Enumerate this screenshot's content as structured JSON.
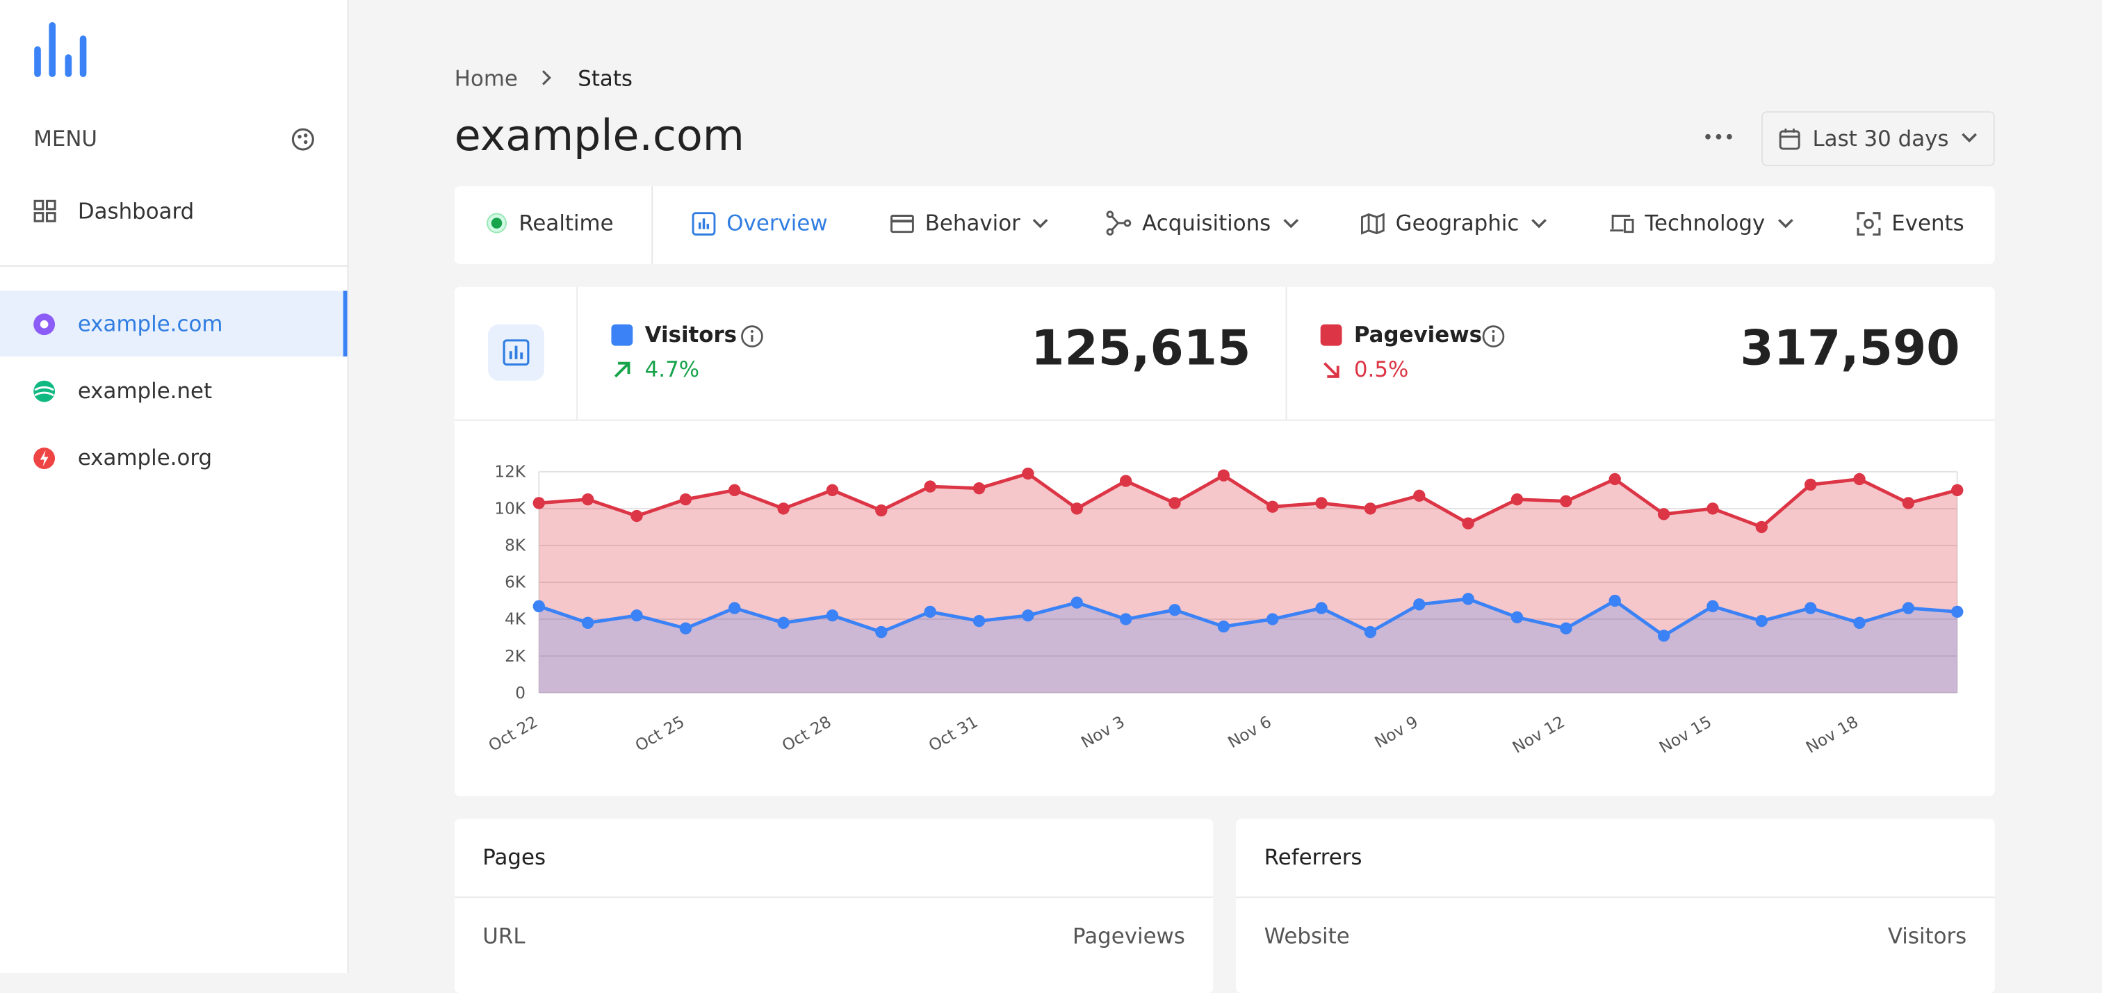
{
  "sidebar": {
    "menu_label": "MENU",
    "items": [
      "Dashboard"
    ],
    "sites": [
      "example.com",
      "example.net",
      "example.org"
    ]
  },
  "breadcrumb": [
    "Home",
    "Stats"
  ],
  "title": "example.com",
  "date_range": "Last 30 days",
  "tabs": [
    "Realtime",
    "Overview",
    "Behavior",
    "Acquisitions",
    "Geographic",
    "Technology",
    "Events"
  ],
  "stats": [
    {
      "value": "125,615",
      "change": "4.7%"
    },
    {
      "value": "317,590",
      "change": "0.5%"
    }
  ],
  "panels": [
    {
      "title": "Pages",
      "columns": [
        "URL",
        "Pageviews"
      ]
    },
    {
      "title": "Referrers",
      "columns": [
        "Website",
        "Visitors"
      ]
    }
  ],
  "chart_data": {
    "type": "area",
    "categories": [
      "Oct 22",
      null,
      null,
      "Oct 25",
      null,
      null,
      "Oct 28",
      null,
      null,
      "Oct 31",
      null,
      null,
      "Nov 3",
      null,
      null,
      "Nov 6",
      null,
      null,
      "Nov 9",
      null,
      null,
      "Nov 12",
      null,
      null,
      "Nov 15",
      null,
      null,
      "Nov 18",
      null,
      null
    ],
    "series": [
      {
        "name": "Visitors",
        "color": "#3b82f6",
        "values": [
          4700,
          3800,
          4200,
          3500,
          4600,
          3800,
          4200,
          3300,
          4400,
          3900,
          4200,
          4900,
          4000,
          4500,
          3600,
          4000,
          4600,
          3300,
          4800,
          5100,
          4100,
          3500,
          5000,
          3100,
          4700,
          3900,
          4600,
          3800,
          4600,
          4400
        ]
      },
      {
        "name": "Pageviews",
        "color": "#dc3545",
        "values": [
          10300,
          10500,
          9600,
          10500,
          11000,
          10000,
          11000,
          9900,
          11200,
          11100,
          11900,
          10000,
          11500,
          10300,
          11800,
          10100,
          10300,
          10000,
          10700,
          9200,
          10500,
          10400,
          11600,
          9700,
          10000,
          9000,
          11300,
          11600,
          10300,
          11000
        ]
      }
    ],
    "ylim": [
      0,
      12000
    ],
    "yticks": [
      0,
      {
        "value": 2000,
        "label": "2K"
      },
      {
        "value": 4000,
        "label": "4K"
      },
      {
        "value": 6000,
        "label": "6K"
      },
      {
        "value": 8000,
        "label": "8K"
      },
      {
        "value": 10000,
        "label": "10K"
      },
      {
        "value": 12000,
        "label": "12K"
      }
    ],
    "grid": true
  }
}
